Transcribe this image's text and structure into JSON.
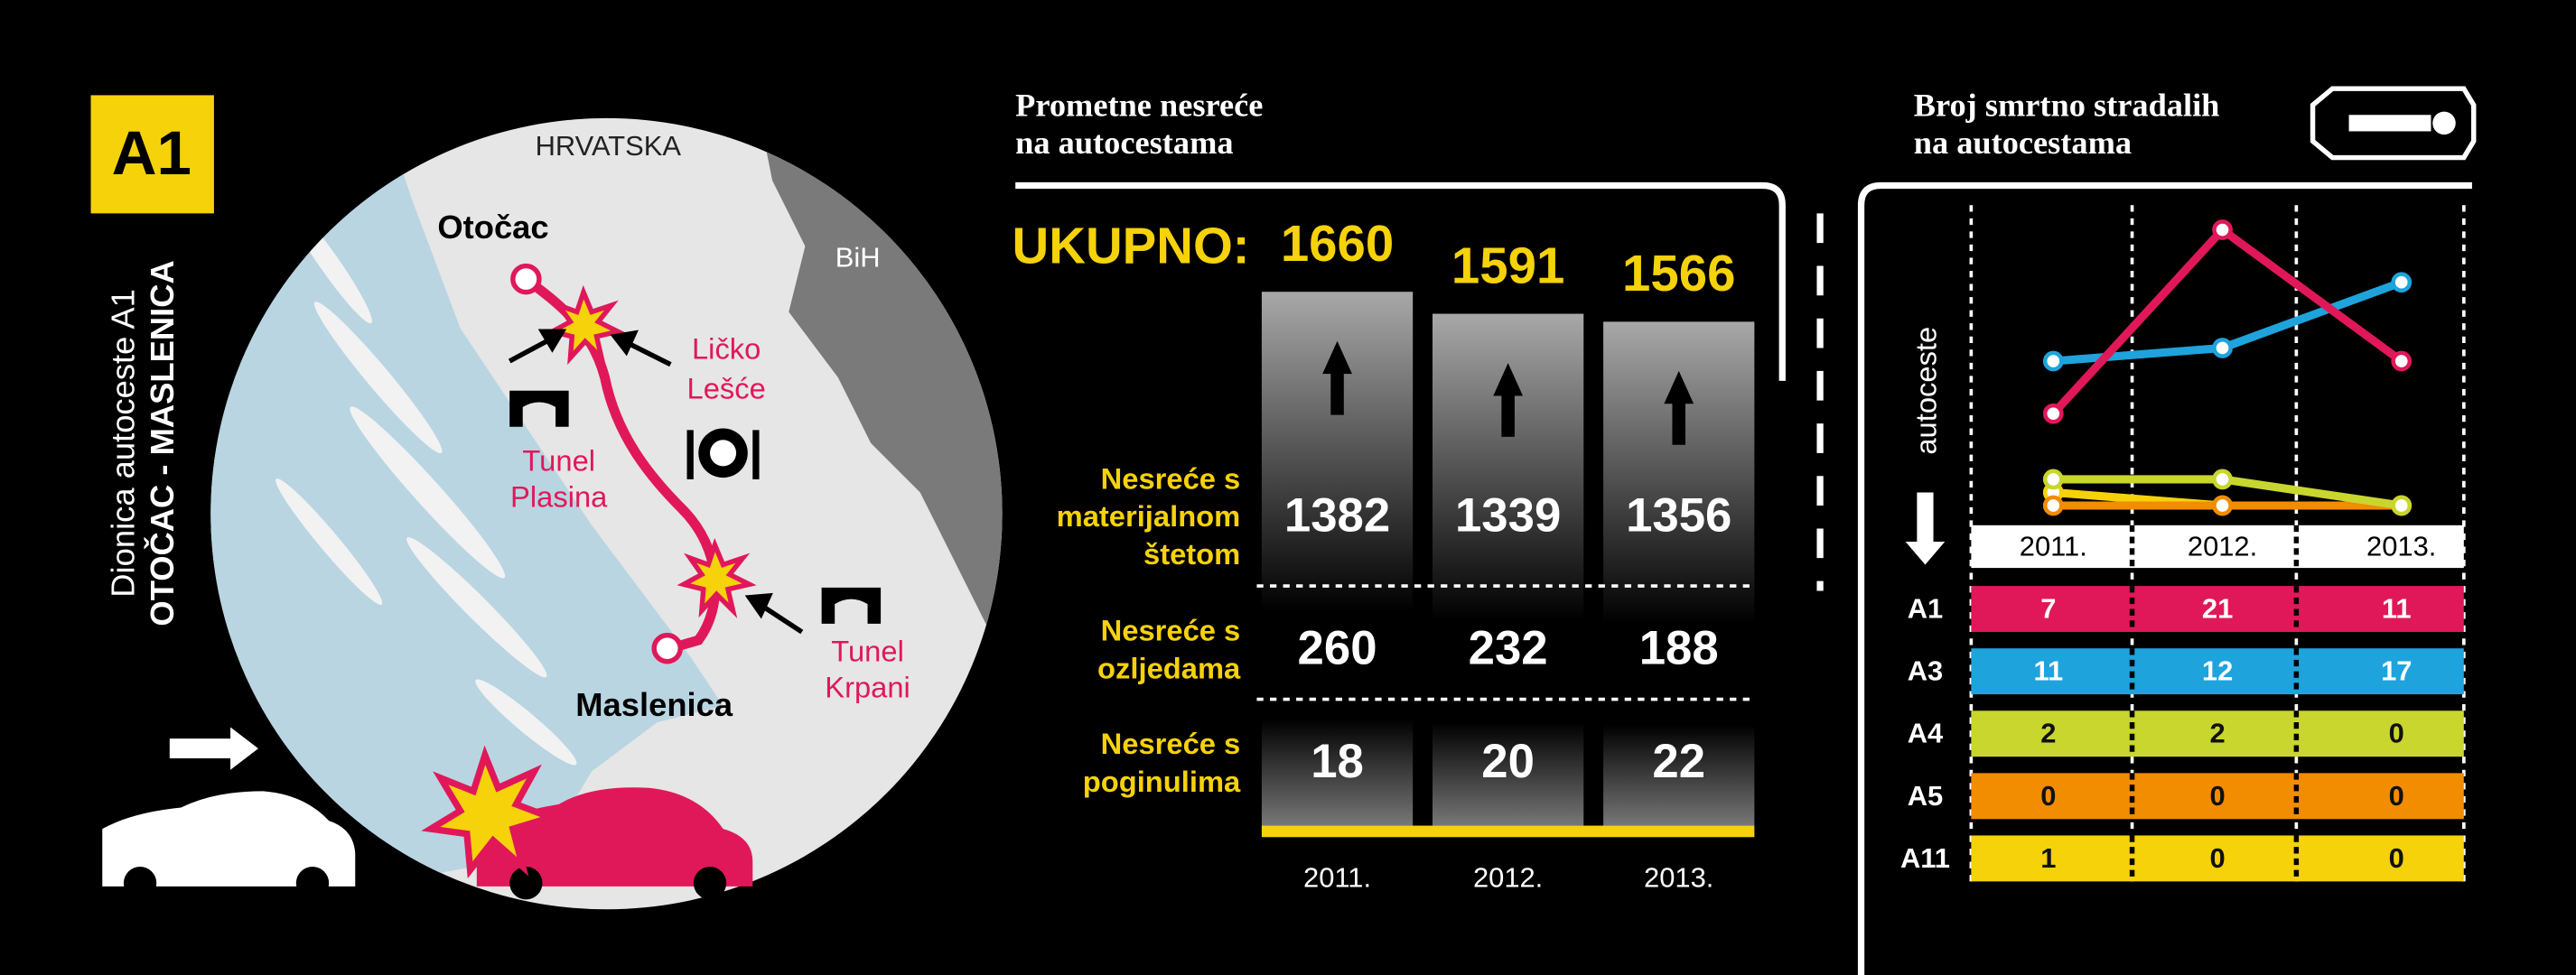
{
  "map": {
    "badge": "A1",
    "side_title": "Dionica autoceste A1",
    "side_subtitle": "OTOČAC - MASLENICA",
    "country": "HRVATSKA",
    "neighbor": "BiH",
    "places": [
      "Otočac",
      "Maslenica"
    ],
    "stops": [
      [
        "Ličko",
        "Lešće"
      ],
      [
        "Tunel",
        "Plasina"
      ],
      [
        "Tunel",
        "Krpani"
      ]
    ]
  },
  "chart_data": [
    {
      "type": "bar",
      "title": [
        "Prometne nesreće",
        "na autocestama"
      ],
      "total_label": "UKUPNO:",
      "categories": [
        "2011.",
        "2012.",
        "2013."
      ],
      "values": [
        1660,
        1591,
        1566
      ],
      "color": "#a8a8a8",
      "ylim": [
        0,
        1700
      ],
      "rows": [
        {
          "label": [
            "Nesreće s",
            "materijalnom",
            "štetom"
          ],
          "values": [
            1382,
            1339,
            1356
          ]
        },
        {
          "label": [
            "Nesreće s",
            "ozljedama"
          ],
          "values": [
            260,
            232,
            188
          ]
        },
        {
          "label": [
            "Nesreće s",
            "poginulima"
          ],
          "values": [
            18,
            20,
            22
          ]
        }
      ]
    },
    {
      "type": "line",
      "title": [
        "Broj smrtno stradalih",
        "na autocestama"
      ],
      "y_label": "autoceste",
      "categories": [
        "2011.",
        "2012.",
        "2013."
      ],
      "ylim": [
        0,
        22.5
      ],
      "series": [
        {
          "name": "A1",
          "color": "#e0185a",
          "values": [
            7,
            21,
            11
          ]
        },
        {
          "name": "A3",
          "color": "#1ea3dc",
          "values": [
            11,
            12,
            17
          ]
        },
        {
          "name": "A4",
          "color": "#c8d62e",
          "values": [
            2,
            2,
            0
          ]
        },
        {
          "name": "A5",
          "color": "#f28c00",
          "values": [
            0,
            0,
            0
          ]
        },
        {
          "name": "A11",
          "color": "#f5d20a",
          "values": [
            1,
            0,
            0
          ]
        }
      ]
    }
  ]
}
